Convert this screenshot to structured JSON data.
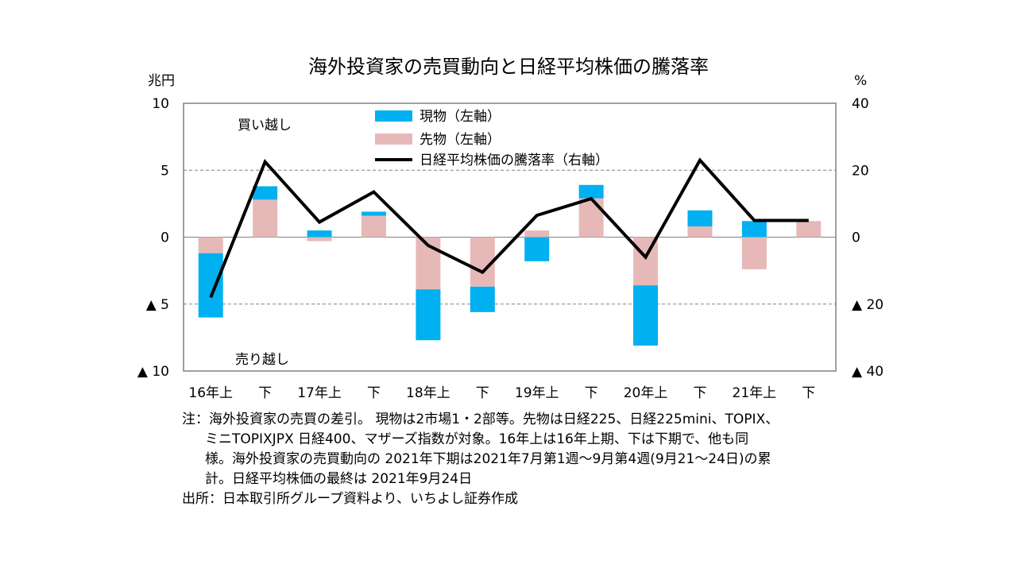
{
  "title": "海外投資家の売買動向と日経平均株価の騰落率",
  "chart_data": {
    "type": "bar",
    "categories": [
      "16年上",
      "下",
      "17年上",
      "下",
      "18年上",
      "下",
      "19年上",
      "下",
      "20年上",
      "下",
      "21年上",
      "下"
    ],
    "series": [
      {
        "name": "現物（左軸）",
        "kind": "bar",
        "axis": "left",
        "color": "#00B0F0",
        "values": [
          -4.8,
          1.0,
          0.5,
          0.3,
          -3.8,
          -1.9,
          -1.8,
          1.0,
          -4.5,
          1.2,
          1.2,
          0.0
        ]
      },
      {
        "name": "先物（左軸）",
        "kind": "bar",
        "axis": "left",
        "color": "#E6B9B8",
        "values": [
          -1.2,
          2.8,
          -0.3,
          1.6,
          -3.9,
          -3.7,
          0.5,
          2.9,
          -3.6,
          0.8,
          -2.4,
          1.2
        ]
      },
      {
        "name": "日経平均株価の騰落率（右軸）",
        "kind": "line",
        "axis": "right",
        "color": "#000000",
        "values": [
          -18.0,
          22.5,
          4.5,
          13.5,
          -2.5,
          -10.5,
          6.5,
          11.5,
          -6.0,
          23.0,
          5.0,
          5.0
        ]
      }
    ],
    "y_left": {
      "unit": "兆円",
      "ylim": [
        -10,
        10
      ],
      "ticks": [
        10,
        5,
        0,
        -5,
        -10
      ],
      "tick_labels": [
        "10",
        "5",
        "0",
        "▲ 5",
        "▲ 10"
      ]
    },
    "y_right": {
      "unit": "%",
      "ylim": [
        -40,
        40
      ],
      "ticks": [
        40,
        20,
        0,
        -20,
        -40
      ],
      "tick_labels": [
        "40",
        "20",
        "0",
        "▲ 20",
        "▲ 40"
      ]
    },
    "annotations": {
      "buy": "買い越し",
      "sell": "売り越し"
    },
    "grid": "dashed at ±5",
    "legend_position": "top-left inside plot"
  },
  "notes": {
    "line1": "注：海外投資家の売買の差引。 現物は2市場1・2部等。先物は日経225、日経225mini、TOPIX、",
    "line2": "ミニTOPIXJPX 日経400、マザーズ指数が対象。16年上は16年上期、下は下期で、他も同",
    "line3": "様。海外投資家の売買動向の 2021年下期は2021年7月第1週～9月第4週(9月21～24日)の累",
    "line4": "計。日経平均株価の最終は 2021年9月24日",
    "source": "出所：日本取引所グループ資料より、いちよし証券作成"
  }
}
